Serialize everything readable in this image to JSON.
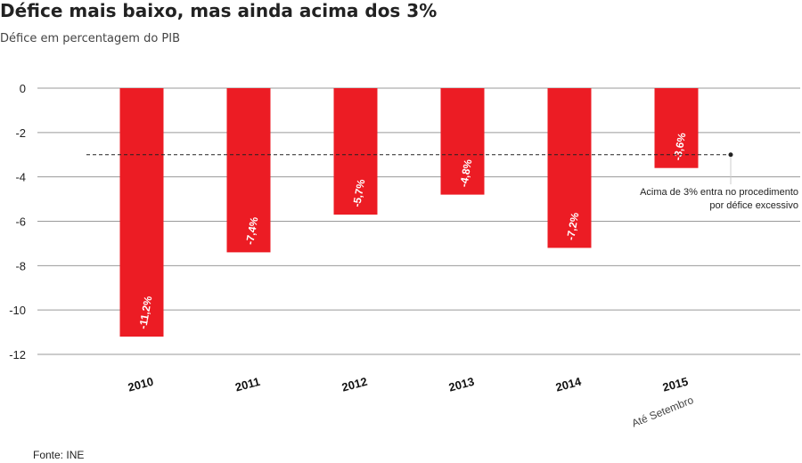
{
  "title": "Défice mais baixo, mas ainda acima dos 3%",
  "subtitle": "Défice em percentagem do PIB",
  "source": "Fonte: INE",
  "chart_data": {
    "type": "bar",
    "categories": [
      "2010",
      "2011",
      "2012",
      "2013",
      "2014",
      "2015"
    ],
    "category_sublabels": [
      "",
      "",
      "",
      "",
      "",
      "Até Setembro"
    ],
    "values": [
      -11.2,
      -7.4,
      -5.7,
      -4.8,
      -7.2,
      -3.6
    ],
    "data_labels": [
      "-11,2%",
      "-7,4%",
      "-5,7%",
      "-4,8%",
      "-7,2%",
      "-3,6%"
    ],
    "ylim": [
      -12,
      0
    ],
    "yticks": [
      0,
      -2,
      -4,
      -6,
      -8,
      -10,
      -12
    ],
    "grid": true,
    "bar_color": "#ec1c24",
    "reference_line": {
      "value": -3,
      "annotation_lines": [
        "Acima de 3% entra no procedimento",
        "por défice excessivo"
      ]
    }
  }
}
